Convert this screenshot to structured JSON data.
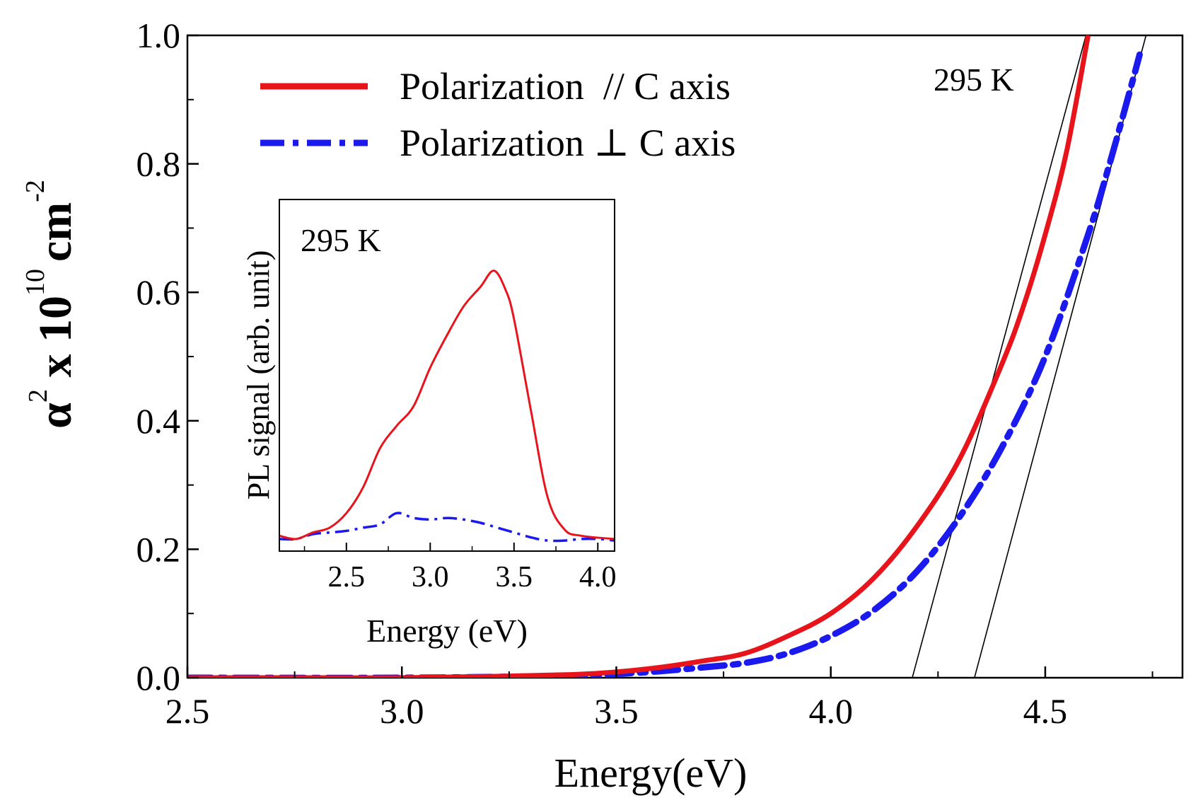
{
  "chart_data": [
    {
      "type": "line",
      "title": "",
      "xlabel": "Energy(eV)",
      "ylabel": {
        "base": "α",
        "sq": "2",
        "times": " x 10",
        "exp": "10",
        "unit": "cm",
        "unit_exp": "-2"
      },
      "xlim": [
        2.5,
        4.82
      ],
      "ylim": [
        0,
        1.0
      ],
      "x_ticks": [
        "2.5",
        "3.0",
        "3.5",
        "4.0",
        "4.5"
      ],
      "x_tick_values": [
        2.5,
        3.0,
        3.5,
        4.0,
        4.5
      ],
      "y_ticks": [
        "0.0",
        "0.2",
        "0.4",
        "0.6",
        "0.8",
        "1.0"
      ],
      "y_tick_values": [
        0.0,
        0.2,
        0.4,
        0.6,
        0.8,
        1.0
      ],
      "annotation": "295 K",
      "legend": {
        "position": "top-left",
        "items": [
          {
            "label": "Polarization  // C axis",
            "color": "#e8141b",
            "style": "solid"
          },
          {
            "label": "Polarization ⊥ C axis",
            "color": "#1a1aee",
            "style": "dash-dot"
          }
        ]
      },
      "series": [
        {
          "name": "Polarization  // C axis",
          "color": "#e8141b",
          "x": [
            2.5,
            2.8,
            3.0,
            3.2,
            3.4,
            3.5,
            3.6,
            3.7,
            3.8,
            3.9,
            4.0,
            4.1,
            4.2,
            4.3,
            4.4,
            4.45,
            4.5,
            4.55,
            4.6
          ],
          "y": [
            0.0,
            0.0,
            0.0,
            0.002,
            0.005,
            0.009,
            0.016,
            0.026,
            0.038,
            0.065,
            0.1,
            0.155,
            0.235,
            0.34,
            0.49,
            0.58,
            0.69,
            0.82,
            1.0
          ]
        },
        {
          "name": "Polarization ⊥ C axis",
          "color": "#1a1aee",
          "x": [
            2.5,
            3.0,
            3.4,
            3.5,
            3.6,
            3.7,
            3.8,
            3.9,
            4.0,
            4.1,
            4.2,
            4.3,
            4.4,
            4.5,
            4.6,
            4.65,
            4.7,
            4.72
          ],
          "y": [
            0.0,
            0.0,
            0.003,
            0.006,
            0.01,
            0.016,
            0.023,
            0.038,
            0.065,
            0.105,
            0.165,
            0.25,
            0.36,
            0.5,
            0.69,
            0.8,
            0.92,
            0.97
          ]
        },
        {
          "name": "linear fit (parallel)",
          "color": "#000000",
          "x": [
            4.19,
            4.595
          ],
          "y": [
            0.0,
            1.0
          ]
        },
        {
          "name": "linear fit (perpendicular)",
          "color": "#000000",
          "x": [
            4.335,
            4.735
          ],
          "y": [
            0.0,
            1.0
          ]
        }
      ]
    },
    {
      "type": "line",
      "title": "",
      "inset": true,
      "xlabel": "Energy (eV)",
      "ylabel": "PL signal (arb. unit)",
      "xlim": [
        2.1,
        4.1
      ],
      "ylim": [
        0,
        1.0
      ],
      "x_ticks": [
        "2.5",
        "3.0",
        "3.5",
        "4.0"
      ],
      "x_tick_values": [
        2.5,
        3.0,
        3.5,
        4.0
      ],
      "annotation": "295 K",
      "series": [
        {
          "name": "PL parallel",
          "color": "#e8141b",
          "x": [
            2.1,
            2.2,
            2.3,
            2.4,
            2.5,
            2.6,
            2.7,
            2.8,
            2.9,
            3.0,
            3.1,
            3.2,
            3.3,
            3.38,
            3.45,
            3.5,
            3.6,
            3.7,
            3.8,
            3.9,
            4.1
          ],
          "y": [
            0.03,
            0.02,
            0.04,
            0.055,
            0.1,
            0.18,
            0.3,
            0.37,
            0.43,
            0.55,
            0.65,
            0.74,
            0.8,
            0.85,
            0.79,
            0.7,
            0.42,
            0.15,
            0.05,
            0.03,
            0.02
          ]
        },
        {
          "name": "PL perpendicular",
          "color": "#1a1aee",
          "x": [
            2.1,
            2.2,
            2.3,
            2.4,
            2.5,
            2.6,
            2.7,
            2.8,
            2.9,
            3.0,
            3.1,
            3.2,
            3.3,
            3.4,
            3.5,
            3.6,
            3.7,
            3.8,
            3.9,
            4.0,
            4.1
          ],
          "y": [
            0.02,
            0.02,
            0.035,
            0.04,
            0.045,
            0.055,
            0.065,
            0.1,
            0.085,
            0.08,
            0.085,
            0.08,
            0.07,
            0.055,
            0.04,
            0.025,
            0.015,
            0.015,
            0.02,
            0.02,
            0.015
          ]
        }
      ]
    }
  ]
}
